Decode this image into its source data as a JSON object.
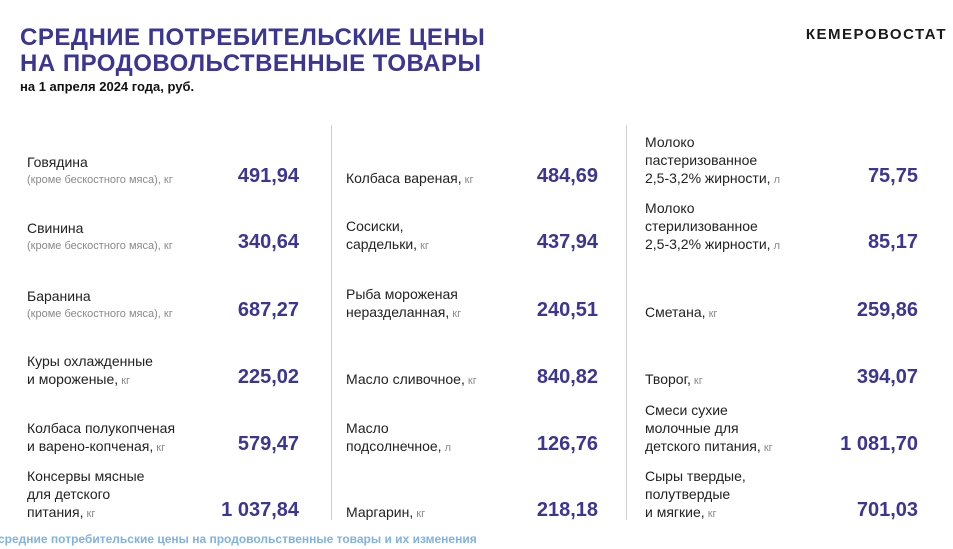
{
  "header": {
    "title_line1": "СРЕДНИЕ ПОТРЕБИТЕЛЬСКИЕ ЦЕНЫ",
    "title_line2": "НА ПРОДОВОЛЬСТВЕННЫЕ ТОВАРЫ",
    "subtitle": "на 1 апреля 2024 года, руб.",
    "brand": "КЕМЕРОВОСТАТ"
  },
  "columns": [
    [
      {
        "lines": [
          "Говядина"
        ],
        "hint_line": "(кроме бескостного мяса),",
        "unit": "кг",
        "value": "491,94"
      },
      {
        "lines": [
          "Свинина"
        ],
        "hint_line": "(кроме бескостного мяса),",
        "unit": "кг",
        "value": "340,64"
      },
      {
        "lines": [
          "Баранина"
        ],
        "hint_line": "(кроме бескостного мяса),",
        "unit": "кг",
        "value": "687,27"
      },
      {
        "lines": [
          "Куры охлажденные",
          "и мороженые,"
        ],
        "unit": "кг",
        "value": "225,02"
      },
      {
        "lines": [
          "Колбаса полукопченая",
          "и варено-копченая,"
        ],
        "unit": "кг",
        "value": "579,47"
      },
      {
        "lines": [
          "Консервы мясные",
          "для детского",
          "питания,"
        ],
        "unit": "кг",
        "value": "1 037,84"
      }
    ],
    [
      {
        "lines": [
          "Колбаса вареная,"
        ],
        "unit": "кг",
        "value": "484,69"
      },
      {
        "lines": [
          "Сосиски,",
          "сардельки,"
        ],
        "unit": "кг",
        "value": "437,94"
      },
      {
        "lines": [
          "Рыба мороженая",
          "неразделанная,"
        ],
        "unit": "кг",
        "value": "240,51"
      },
      {
        "lines": [
          "Масло сливочное,"
        ],
        "unit": "кг",
        "value": "840,82"
      },
      {
        "lines": [
          "Масло",
          "подсолнечное,"
        ],
        "unit": "л",
        "value": "126,76"
      },
      {
        "lines": [
          "Маргарин,"
        ],
        "unit": "кг",
        "value": "218,18"
      }
    ],
    [
      {
        "lines": [
          "Молоко",
          "пастеризованное",
          "2,5-3,2% жирности,"
        ],
        "unit": "л",
        "value": "75,75"
      },
      {
        "lines": [
          "Молоко",
          "стерилизованное",
          "2,5-3,2% жирности,"
        ],
        "unit": "л",
        "value": "85,17"
      },
      {
        "lines": [
          "Сметана,"
        ],
        "unit": "кг",
        "value": "259,86"
      },
      {
        "lines": [
          "Творог,"
        ],
        "unit": "кг",
        "value": "394,07"
      },
      {
        "lines": [
          "Смеси сухие",
          "молочные для",
          "детского питания,"
        ],
        "unit": "кг",
        "value": "1 081,70"
      },
      {
        "lines": [
          "Сыры твердые,",
          "полутвердые",
          "и мягкие,"
        ],
        "unit": "кг",
        "value": "701,03"
      }
    ]
  ],
  "footer": "средние потребительские цены на продовольственные товары и их изменения",
  "colors": {
    "accent": "#3b3594",
    "hint": "#8a8a8a",
    "footer": "#7fb2e5"
  }
}
